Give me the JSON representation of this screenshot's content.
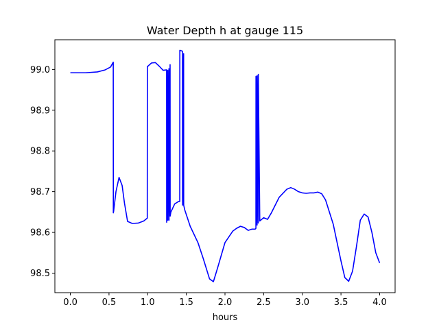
{
  "chart_data": {
    "type": "line",
    "title": "Water Depth h at gauge 115",
    "xlabel": "hours",
    "ylabel": "",
    "xlim": [
      -0.2,
      4.2
    ],
    "ylim": [
      98.452,
      99.073
    ],
    "xticks": [
      0.0,
      0.5,
      1.0,
      1.5,
      2.0,
      2.5,
      3.0,
      3.5,
      4.0
    ],
    "xtick_labels": [
      "0.0",
      "0.5",
      "1.0",
      "1.5",
      "2.0",
      "2.5",
      "3.0",
      "3.5",
      "4.0"
    ],
    "yticks": [
      98.5,
      98.6,
      98.7,
      98.8,
      98.9,
      99.0
    ],
    "ytick_labels": [
      "98.5",
      "98.6",
      "98.7",
      "98.8",
      "98.9",
      "99.0"
    ],
    "grid": false,
    "color": "#0000ff",
    "series": [
      {
        "x": [
          0.0,
          0.2,
          0.35,
          0.45,
          0.52,
          0.555,
          0.556,
          0.56,
          0.59,
          0.63,
          0.67,
          0.7,
          0.74,
          0.8,
          0.88,
          0.95,
          0.995,
          0.996,
          1.05,
          1.1,
          1.15,
          1.2,
          1.245,
          1.246,
          1.26,
          1.261,
          1.275,
          1.276,
          1.29,
          1.291,
          1.3,
          1.35,
          1.4,
          1.415,
          1.416,
          1.45,
          1.451,
          1.465,
          1.466,
          1.48,
          1.55,
          1.6,
          1.65,
          1.72,
          1.8,
          1.85,
          1.9,
          2.0,
          2.1,
          2.15,
          2.2,
          2.25,
          2.3,
          2.35,
          2.39,
          2.4,
          2.401,
          2.415,
          2.416,
          2.43,
          2.431,
          2.45,
          2.5,
          2.55,
          2.6,
          2.7,
          2.8,
          2.85,
          2.9,
          2.95,
          3.0,
          3.05,
          3.1,
          3.15,
          3.2,
          3.25,
          3.3,
          3.4,
          3.5,
          3.55,
          3.6,
          3.65,
          3.7,
          3.75,
          3.8,
          3.85,
          3.9,
          3.95,
          4.0
        ],
        "y": [
          98.992,
          98.992,
          98.994,
          98.999,
          99.006,
          99.018,
          98.648,
          98.652,
          98.7,
          98.735,
          98.715,
          98.672,
          98.627,
          98.622,
          98.623,
          98.628,
          98.635,
          99.007,
          99.016,
          99.017,
          99.008,
          98.998,
          98.999,
          98.625,
          98.998,
          98.63,
          99.002,
          98.63,
          99.012,
          98.64,
          98.65,
          98.67,
          98.676,
          98.676,
          99.047,
          99.045,
          98.667,
          99.039,
          98.667,
          98.655,
          98.615,
          98.595,
          98.575,
          98.535,
          98.486,
          98.479,
          98.51,
          98.575,
          98.603,
          98.61,
          98.615,
          98.612,
          98.605,
          98.608,
          98.608,
          98.61,
          98.983,
          98.618,
          98.985,
          98.623,
          98.988,
          98.628,
          98.636,
          98.632,
          98.648,
          98.686,
          98.706,
          98.71,
          98.706,
          98.7,
          98.697,
          98.696,
          98.697,
          98.697,
          98.699,
          98.695,
          98.68,
          98.62,
          98.53,
          98.489,
          98.48,
          98.505,
          98.565,
          98.63,
          98.645,
          98.638,
          98.6,
          98.55,
          98.525
        ]
      }
    ]
  }
}
